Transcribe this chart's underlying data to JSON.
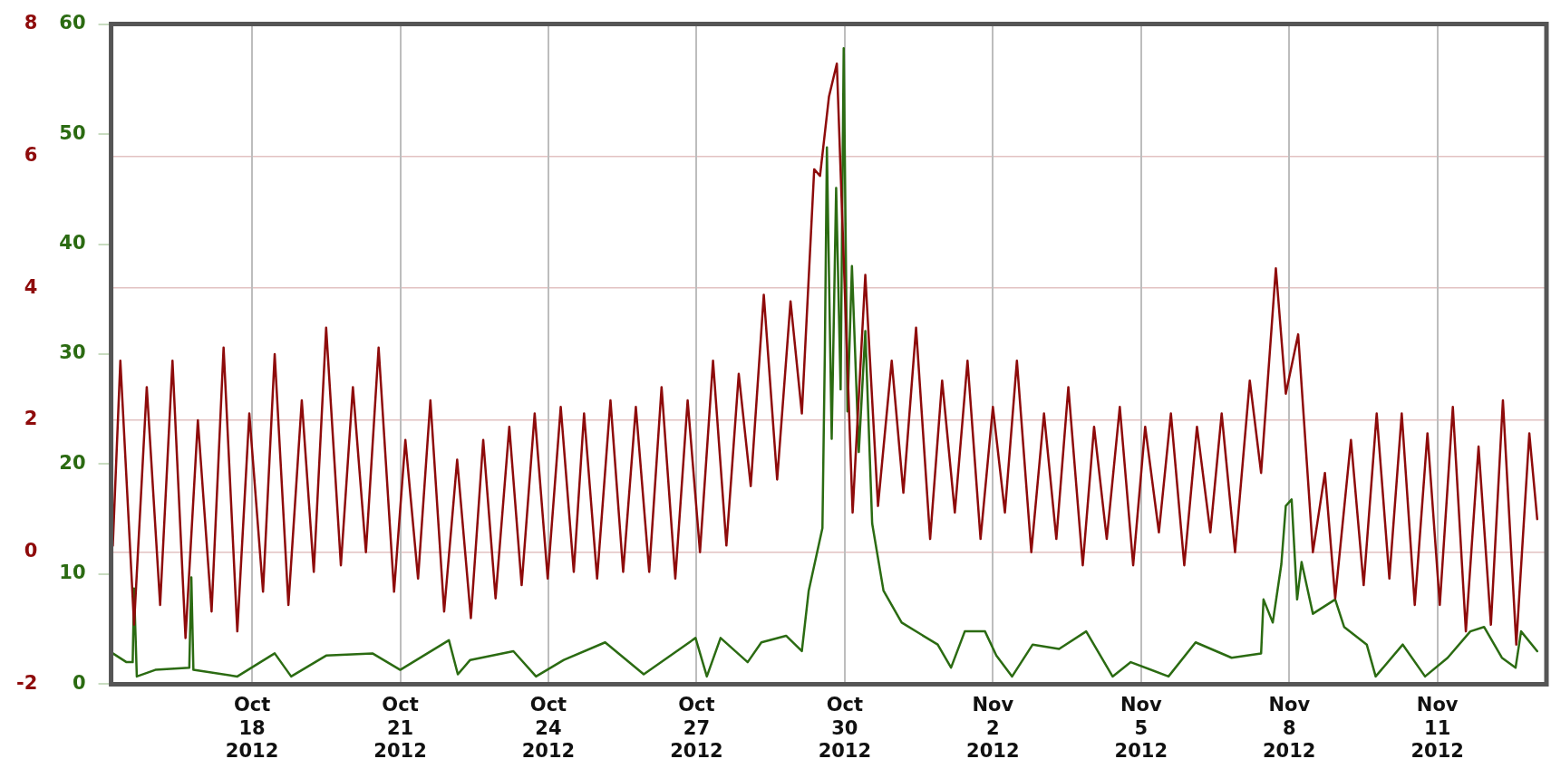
{
  "chart_data": {
    "type": "line",
    "xlim": [
      "2012-10-15T03:30",
      "2012-11-13T05:00"
    ],
    "xticks": [
      {
        "value": "2012-10-18",
        "label": "Oct 18 2012"
      },
      {
        "value": "2012-10-21",
        "label": "Oct 21 2012"
      },
      {
        "value": "2012-10-24",
        "label": "Oct 24 2012"
      },
      {
        "value": "2012-10-27",
        "label": "Oct 27 2012"
      },
      {
        "value": "2012-10-30",
        "label": "Oct 30 2012"
      },
      {
        "value": "2012-11-02",
        "label": "Nov 2 2012"
      },
      {
        "value": "2012-11-05",
        "label": "Nov 5 2012"
      },
      {
        "value": "2012-11-08",
        "label": "Nov 8 2012"
      },
      {
        "value": "2012-11-11",
        "label": "Nov 11 2012"
      }
    ],
    "ylim": [
      -2,
      8
    ],
    "yticks": [
      -2,
      0,
      2,
      4,
      6,
      8
    ],
    "y2lim": [
      0,
      60
    ],
    "y2ticks": [
      0,
      10,
      20,
      30,
      40,
      50,
      60
    ],
    "grid": true,
    "legend": false,
    "series": [
      {
        "color": "#8e0b0b",
        "x": [
          "2012-10-15T04:20",
          "2012-10-15T08:00",
          "2012-10-15T14:40",
          "2012-10-15T20:50",
          "2012-10-16T03:20",
          "2012-10-16T09:20",
          "2012-10-16T15:40",
          "2012-10-16T21:40",
          "2012-10-17T04:20",
          "2012-10-17T10:10",
          "2012-10-17T16:50",
          "2012-10-17T22:40",
          "2012-10-18T05:20",
          "2012-10-18T11:00",
          "2012-10-18T17:40",
          "2012-10-19T00:10",
          "2012-10-19T06:00",
          "2012-10-19T12:00",
          "2012-10-19T19:10",
          "2012-10-20T01:00",
          "2012-10-20T07:20",
          "2012-10-20T13:30",
          "2012-10-20T21:00",
          "2012-10-21T02:30",
          "2012-10-21T08:40",
          "2012-10-21T14:40",
          "2012-10-21T21:20",
          "2012-10-22T03:40",
          "2012-10-22T10:20",
          "2012-10-22T16:20",
          "2012-10-22T22:20",
          "2012-10-23T05:00",
          "2012-10-23T11:00",
          "2012-10-23T17:20",
          "2012-10-23T23:40",
          "2012-10-24T06:00",
          "2012-10-24T12:20",
          "2012-10-24T17:20",
          "2012-10-24T23:40",
          "2012-10-25T06:10",
          "2012-10-25T12:20",
          "2012-10-25T18:30",
          "2012-10-26T01:00",
          "2012-10-26T07:00",
          "2012-10-26T13:40",
          "2012-10-26T19:40",
          "2012-10-27T01:40",
          "2012-10-27T08:00",
          "2012-10-27T14:30",
          "2012-10-27T20:30",
          "2012-10-28T02:20",
          "2012-10-28T08:40",
          "2012-10-28T15:10",
          "2012-10-28T21:40",
          "2012-10-29T03:10",
          "2012-10-29T09:10",
          "2012-10-29T12:00",
          "2012-10-29T16:20",
          "2012-10-29T20:10",
          "2012-10-30T03:50",
          "2012-10-30T10:00",
          "2012-10-30T16:10",
          "2012-10-30T22:50",
          "2012-10-31T04:30",
          "2012-10-31T10:40",
          "2012-10-31T17:30",
          "2012-10-31T23:20",
          "2012-11-01T05:30",
          "2012-11-01T11:40",
          "2012-11-01T18:00",
          "2012-11-02T00:00",
          "2012-11-02T05:50",
          "2012-11-02T11:40",
          "2012-11-02T18:40",
          "2012-11-03T00:50",
          "2012-11-03T06:50",
          "2012-11-03T12:40",
          "2012-11-03T19:40",
          "2012-11-04T01:10",
          "2012-11-04T07:20",
          "2012-11-04T13:40",
          "2012-11-04T20:10",
          "2012-11-05T02:00",
          "2012-11-05T08:40",
          "2012-11-05T14:30",
          "2012-11-05T21:00",
          "2012-11-06T03:10",
          "2012-11-06T09:40",
          "2012-11-06T15:10",
          "2012-11-06T21:40",
          "2012-11-07T04:50",
          "2012-11-07T10:20",
          "2012-11-07T17:30",
          "2012-11-07T22:20",
          "2012-11-08T04:20",
          "2012-11-08T11:30",
          "2012-11-08T17:20",
          "2012-11-08T22:20",
          "2012-11-09T06:00",
          "2012-11-09T12:10",
          "2012-11-09T18:30",
          "2012-11-10T00:40",
          "2012-11-10T06:40",
          "2012-11-10T13:00",
          "2012-11-10T19:10",
          "2012-11-11T01:10",
          "2012-11-11T07:30",
          "2012-11-11T13:50",
          "2012-11-11T20:00",
          "2012-11-12T02:00",
          "2012-11-12T07:50",
          "2012-11-12T14:20",
          "2012-11-12T20:40",
          "2012-11-13T00:30"
        ],
        "values": [
          0.1,
          2.9,
          -1.1,
          2.5,
          -0.8,
          2.9,
          -1.3,
          2.0,
          -0.9,
          3.1,
          -1.2,
          2.1,
          -0.6,
          3.0,
          -0.8,
          2.3,
          -0.3,
          3.4,
          -0.2,
          2.5,
          0.0,
          3.1,
          -0.6,
          1.7,
          -0.4,
          2.3,
          -0.9,
          1.4,
          -1.0,
          1.7,
          -0.7,
          1.9,
          -0.5,
          2.1,
          -0.4,
          2.2,
          -0.3,
          2.1,
          -0.4,
          2.3,
          -0.3,
          2.2,
          -0.3,
          2.5,
          -0.4,
          2.3,
          0.0,
          2.9,
          0.1,
          2.7,
          1.0,
          3.9,
          1.1,
          3.8,
          2.1,
          5.8,
          5.7,
          6.9,
          7.4,
          0.6,
          4.2,
          0.7,
          2.9,
          0.9,
          3.4,
          0.2,
          2.6,
          0.6,
          2.9,
          0.2,
          2.2,
          0.6,
          2.9,
          0.0,
          2.1,
          0.2,
          2.5,
          -0.2,
          1.9,
          0.2,
          2.2,
          -0.2,
          1.9,
          0.3,
          2.1,
          -0.2,
          1.9,
          0.3,
          2.1,
          0.0,
          2.6,
          1.2,
          4.3,
          2.4,
          3.3,
          0.0,
          1.2,
          -0.7,
          1.7,
          -0.5,
          2.1,
          -0.4,
          2.1,
          -0.8,
          1.8,
          -0.8,
          2.2,
          -1.2,
          1.6,
          -1.1,
          2.3,
          -1.4,
          1.8,
          0.5
        ]
      },
      {
        "color": "#2b6b12",
        "axis": "y2",
        "x": [
          "2012-10-15T04:20",
          "2012-10-15T11:00",
          "2012-10-15T14:00",
          "2012-10-15T14:40",
          "2012-10-15T16:00",
          "2012-10-16T01:00",
          "2012-10-16T17:30",
          "2012-10-16T18:30",
          "2012-10-16T19:30",
          "2012-10-17T16:50",
          "2012-10-18T11:00",
          "2012-10-18T19:00",
          "2012-10-19T12:00",
          "2012-10-20T10:30",
          "2012-10-21T00:00",
          "2012-10-21T23:40",
          "2012-10-22T04:00",
          "2012-10-22T10:00",
          "2012-10-23T07:00",
          "2012-10-23T18:00",
          "2012-10-24T07:30",
          "2012-10-25T03:35",
          "2012-10-25T22:20",
          "2012-10-26T23:30",
          "2012-10-27T05:00",
          "2012-10-27T11:40",
          "2012-10-28T00:50",
          "2012-10-28T07:30",
          "2012-10-28T19:30",
          "2012-10-29T03:10",
          "2012-10-29T06:30",
          "2012-10-29T13:10",
          "2012-10-29T14:20",
          "2012-10-29T15:20",
          "2012-10-29T17:40",
          "2012-10-29T19:50",
          "2012-10-29T22:00",
          "2012-10-29T23:30",
          "2012-10-30T01:20",
          "2012-10-30T03:30",
          "2012-10-30T06:50",
          "2012-10-30T10:00",
          "2012-10-30T13:20",
          "2012-10-30T18:50",
          "2012-10-31T03:40",
          "2012-10-31T21:10",
          "2012-11-01T03:40",
          "2012-11-01T10:20",
          "2012-11-01T20:10",
          "2012-11-02T01:40",
          "2012-11-02T09:20",
          "2012-11-02T19:20",
          "2012-11-03T08:10",
          "2012-11-03T21:20",
          "2012-11-04T10:10",
          "2012-11-04T19:00",
          "2012-11-05T13:20",
          "2012-11-06T02:30",
          "2012-11-06T20:00",
          "2012-11-07T10:20",
          "2012-11-07T11:30",
          "2012-11-07T16:00",
          "2012-11-07T20:10",
          "2012-11-07T22:20",
          "2012-11-08T01:10",
          "2012-11-08T03:50",
          "2012-11-08T06:00",
          "2012-11-08T11:30",
          "2012-11-08T22:20",
          "2012-11-09T02:40",
          "2012-11-09T13:40",
          "2012-11-09T18:00",
          "2012-11-10T07:10",
          "2012-11-10T18:00",
          "2012-11-11T05:00",
          "2012-11-11T16:00",
          "2012-11-11T22:40",
          "2012-11-12T07:20",
          "2012-11-12T14:00",
          "2012-11-12T16:40",
          "2012-11-13T00:30"
        ],
        "values": [
          2.8,
          2.0,
          2.0,
          8.7,
          0.7,
          1.3,
          1.5,
          9.7,
          1.3,
          0.7,
          2.8,
          0.7,
          2.6,
          2.8,
          1.3,
          4.0,
          0.9,
          2.2,
          3.0,
          0.7,
          2.2,
          3.8,
          0.9,
          4.2,
          0.7,
          4.2,
          2.0,
          3.8,
          4.4,
          3.0,
          8.5,
          14.2,
          30.1,
          48.8,
          22.3,
          45.1,
          26.8,
          57.8,
          24.8,
          38.0,
          21.1,
          32.1,
          14.6,
          8.5,
          5.6,
          3.6,
          1.5,
          4.8,
          4.8,
          2.6,
          0.7,
          3.6,
          3.2,
          4.8,
          0.7,
          2.0,
          0.7,
          3.8,
          2.4,
          2.8,
          7.7,
          5.6,
          10.9,
          16.2,
          16.8,
          7.7,
          11.1,
          6.4,
          7.7,
          5.2,
          3.6,
          0.7,
          3.6,
          0.7,
          2.4,
          4.8,
          5.2,
          2.4,
          1.5,
          4.8,
          3.0
        ]
      }
    ]
  }
}
